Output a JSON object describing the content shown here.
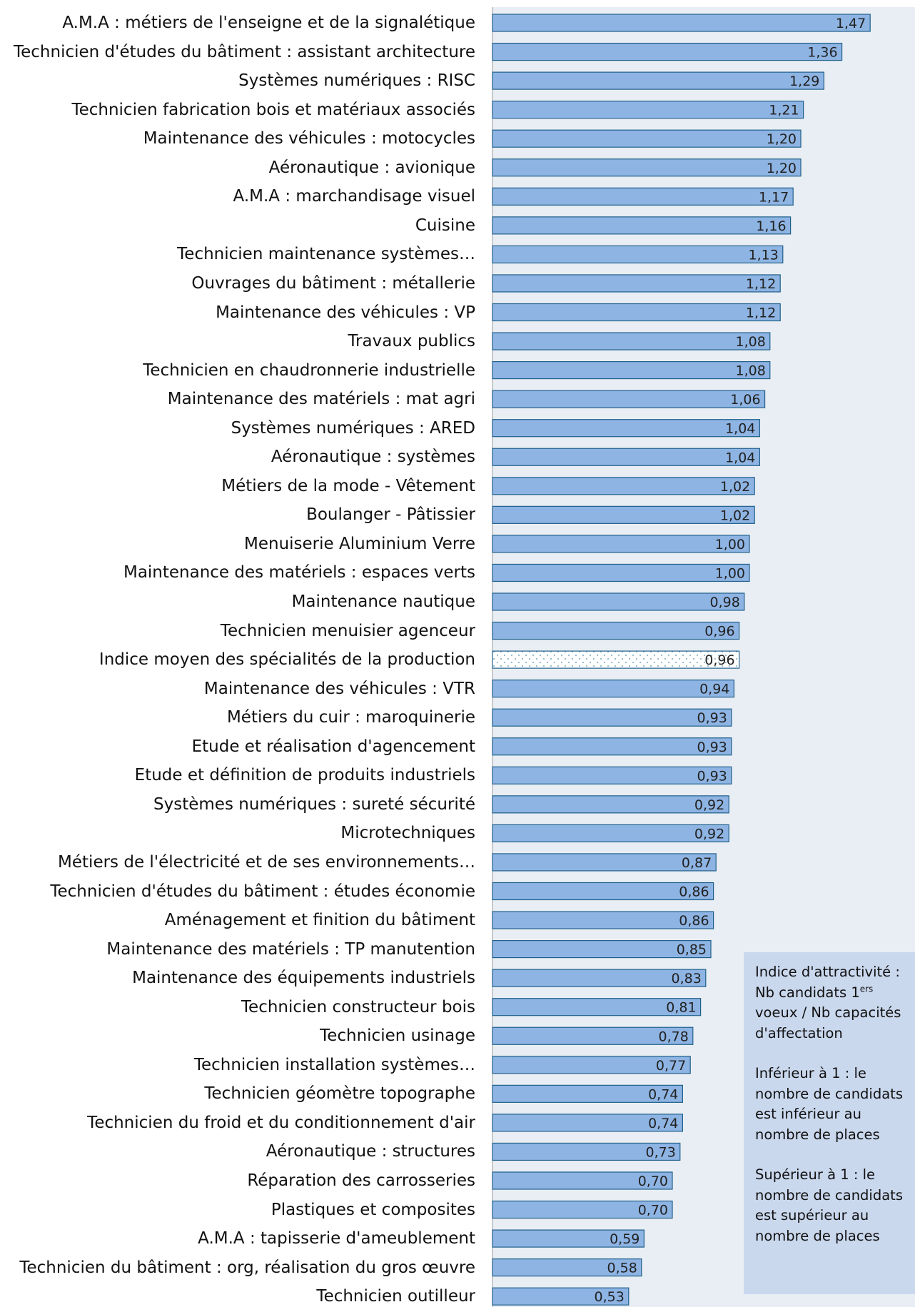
{
  "chart_data": {
    "type": "bar",
    "orientation": "horizontal",
    "title": "",
    "xlabel": "",
    "ylabel": "",
    "xlim": [
      0,
      1.5
    ],
    "grid": false,
    "legend": "none",
    "colors": {
      "bar": "#8eb4e3",
      "bar_border": "#1f5f8b",
      "plot_bg": "#e8eef3",
      "highlight_bar": "#ffffff"
    },
    "categories": [
      "A.M.A : métiers de l'enseigne et de la signalétique",
      "Technicien d'études du bâtiment : assistant architecture",
      "Systèmes numériques : RISC",
      "Technicien fabrication bois et matériaux associés",
      "Maintenance des véhicules : motocycles",
      "Aéronautique : avionique",
      "A.M.A : marchandisage visuel",
      "Cuisine",
      "Technicien maintenance systèmes…",
      "Ouvrages du bâtiment : métallerie",
      "Maintenance des véhicules : VP",
      "Travaux publics",
      "Technicien en chaudronnerie industrielle",
      "Maintenance des matériels : mat agri",
      "Systèmes numériques : ARED",
      "Aéronautique : systèmes",
      "Métiers de la mode - Vêtement",
      "Boulanger - Pâtissier",
      "Menuiserie Aluminium Verre",
      "Maintenance des matériels : espaces verts",
      "Maintenance nautique",
      "Technicien menuisier agenceur",
      "Indice moyen des spécialités de la production",
      "Maintenance des véhicules : VTR",
      "Métiers du cuir : maroquinerie",
      "Etude et réalisation d'agencement",
      "Etude et définition de produits industriels",
      "Systèmes numériques : sureté sécurité",
      "Microtechniques",
      "Métiers de l'électricité et de ses environnements…",
      "Technicien d'études du bâtiment : études économie",
      "Aménagement et finition du bâtiment",
      "Maintenance des matériels : TP manutention",
      "Maintenance des équipements industriels",
      "Technicien constructeur bois",
      "Technicien usinage",
      "Technicien installation systèmes…",
      "Technicien géomètre topographe",
      "Technicien du froid et du conditionnement d'air",
      "Aéronautique : structures",
      "Réparation des carrosseries",
      "Plastiques et composites",
      "A.M.A : tapisserie d'ameublement",
      "Technicien du bâtiment : org, réalisation du gros œuvre",
      "Technicien outilleur"
    ],
    "values": [
      1.47,
      1.36,
      1.29,
      1.21,
      1.2,
      1.2,
      1.17,
      1.16,
      1.13,
      1.12,
      1.12,
      1.08,
      1.08,
      1.06,
      1.04,
      1.04,
      1.02,
      1.02,
      1.0,
      1.0,
      0.98,
      0.96,
      0.96,
      0.94,
      0.93,
      0.93,
      0.93,
      0.92,
      0.92,
      0.87,
      0.86,
      0.86,
      0.85,
      0.83,
      0.81,
      0.78,
      0.77,
      0.74,
      0.74,
      0.73,
      0.7,
      0.7,
      0.59,
      0.58,
      0.53
    ],
    "value_labels": [
      "1,47",
      "1,36",
      "1,29",
      "1,21",
      "1,20",
      "1,20",
      "1,17",
      "1,16",
      "1,13",
      "1,12",
      "1,12",
      "1,08",
      "1,08",
      "1,06",
      "1,04",
      "1,04",
      "1,02",
      "1,02",
      "1,00",
      "1,00",
      "0,98",
      "0,96",
      "0,96",
      "0,94",
      "0,93",
      "0,93",
      "0,93",
      "0,92",
      "0,92",
      "0,87",
      "0,86",
      "0,86",
      "0,85",
      "0,83",
      "0,81",
      "0,78",
      "0,77",
      "0,74",
      "0,74",
      "0,73",
      "0,70",
      "0,70",
      "0,59",
      "0,58",
      "0,53"
    ],
    "highlight_category": "Indice moyen des spécialités de la production",
    "annotation": {
      "line1": "Indice d'attractivité :",
      "line2_prefix": "Nb candidats 1",
      "line2_sup": "ers",
      "line3": "voeux / Nb capacités\nd'affectation",
      "para2": "Inférieur à 1 : le\nnombre de candidats\nest inférieur au\nnombre de places",
      "para3": "Supérieur à 1 : le\nnombre de candidats\nest supérieur au\nnombre de places"
    }
  }
}
